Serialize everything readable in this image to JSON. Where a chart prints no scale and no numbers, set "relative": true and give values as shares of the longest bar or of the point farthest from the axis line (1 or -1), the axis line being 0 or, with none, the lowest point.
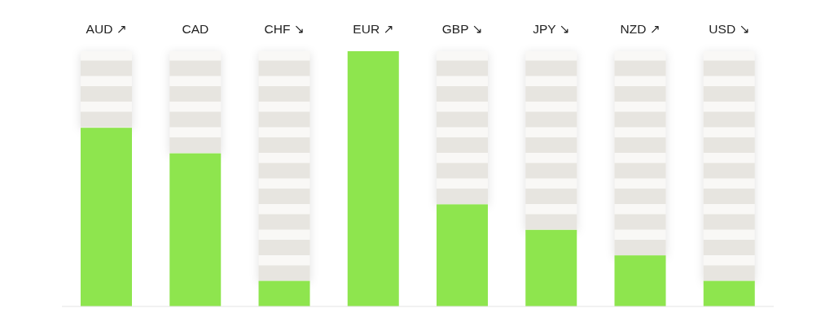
{
  "chart_data": {
    "type": "bar",
    "relative": true,
    "categories": [
      "AUD ↗",
      "CAD",
      "CHF ↘",
      "EUR ↗",
      "GBP ↘",
      "JPY ↘",
      "NZD ↗",
      "USD ↘"
    ],
    "values": [
      0.7,
      0.6,
      0.1,
      1,
      0.4,
      0.3,
      0.2,
      0.1
    ],
    "color": "#8ee54e"
  }
}
